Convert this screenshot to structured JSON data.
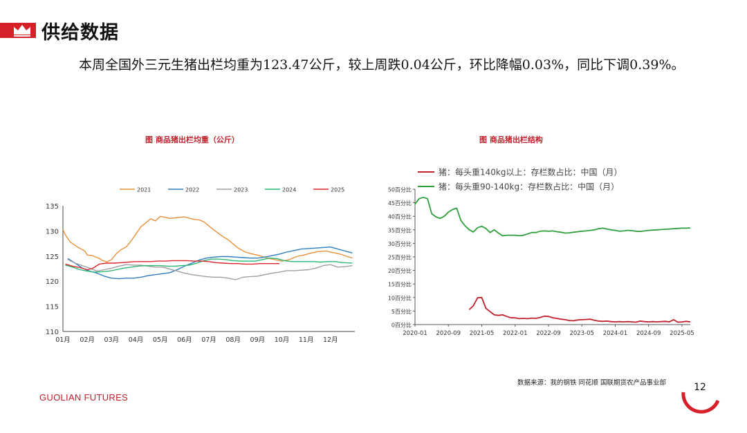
{
  "header": {
    "title": "供给数据"
  },
  "summary": "本周全国外三元生猪出栏均重为123.47公斤，较上周跌0.04公斤，环比降幅0.03%，同比下调0.39%。",
  "colors": {
    "accent": "#d6202a",
    "c2021": "#e8913a",
    "c2022": "#2e7bbf",
    "c2023": "#9e9e9e",
    "c2024": "#2bb673",
    "c2025": "#e0262c",
    "heavy": "#c0202a",
    "mid": "#2f9e3c"
  },
  "icons": {
    "logo": "crown-icon"
  },
  "chart_data": [
    {
      "type": "line",
      "title": "图   商品猪出栏均重（公斤）",
      "xlabel": "",
      "ylabel": "",
      "categories": [
        "01月",
        "02月",
        "03月",
        "04月",
        "05月",
        "06月",
        "07月",
        "08月",
        "09月",
        "10月",
        "11月",
        "12月"
      ],
      "ylim": [
        110,
        135
      ],
      "yticks": [
        "135",
        "130",
        "125",
        "120",
        "115",
        "110"
      ],
      "legend_position": "top",
      "series": [
        {
          "name": "2021",
          "x": [
            1,
            1.1,
            1.3,
            1.6,
            1.9,
            2.0,
            2.2,
            2.5,
            2.6,
            2.8,
            3.0,
            3.2,
            3.4,
            3.6,
            3.8,
            4.0,
            4.2,
            4.4,
            4.6,
            4.8,
            5.0,
            5.2,
            5.4,
            5.6,
            5.8,
            6.0,
            6.2,
            6.4,
            6.6,
            6.8,
            7.0,
            7.2,
            7.4,
            7.6,
            7.8,
            8.0,
            8.2,
            8.5,
            8.8,
            9.0,
            9.2,
            9.5,
            9.8,
            10.0,
            10.3,
            10.6,
            10.9,
            11.2,
            11.5,
            11.8,
            12.1,
            12.4,
            12.7,
            12.9
          ],
          "values": [
            130.3,
            129.2,
            127.8,
            126.8,
            126.0,
            125.2,
            125.1,
            124.5,
            124.2,
            123.8,
            124.3,
            125.5,
            126.3,
            126.8,
            128.0,
            129.4,
            130.8,
            131.6,
            132.4,
            132.0,
            132.9,
            132.7,
            132.5,
            132.6,
            132.7,
            132.8,
            132.5,
            132.3,
            132.2,
            131.8,
            131.0,
            130.2,
            129.5,
            128.8,
            128.2,
            127.4,
            126.6,
            125.8,
            125.4,
            125.2,
            124.9,
            124.5,
            124.2,
            124.0,
            124.3,
            124.9,
            125.2,
            125.6,
            125.9,
            126.0,
            125.7,
            125.4,
            124.9,
            124.6
          ]
        },
        {
          "name": "2022",
          "x": [
            1.2,
            1.5,
            1.8,
            2.1,
            2.4,
            2.7,
            3.0,
            3.3,
            3.6,
            3.9,
            4.2,
            4.5,
            4.8,
            5.1,
            5.4,
            5.7,
            6.0,
            6.3,
            6.6,
            6.9,
            7.2,
            7.5,
            7.8,
            8.1,
            8.4,
            8.7,
            9.0,
            9.3,
            9.6,
            9.9,
            10.2,
            10.5,
            10.8,
            11.1,
            11.4,
            11.7,
            12.0,
            12.3,
            12.6,
            12.9
          ],
          "values": [
            124.5,
            123.6,
            122.6,
            122.0,
            121.6,
            121.0,
            120.6,
            120.5,
            120.6,
            120.6,
            120.8,
            121.1,
            121.3,
            121.5,
            121.7,
            122.3,
            123.0,
            123.6,
            124.2,
            124.6,
            124.8,
            124.9,
            124.9,
            124.8,
            124.7,
            124.6,
            124.6,
            124.8,
            125.1,
            125.4,
            125.8,
            126.1,
            126.4,
            126.5,
            126.6,
            126.7,
            126.8,
            126.4,
            126.0,
            125.6
          ]
        },
        {
          "name": "2023",
          "x": [
            1.2,
            1.5,
            1.8,
            2.1,
            2.4,
            2.7,
            3.0,
            3.3,
            3.6,
            3.9,
            4.2,
            4.5,
            4.8,
            5.1,
            5.4,
            5.7,
            6.0,
            6.3,
            6.6,
            6.9,
            7.2,
            7.5,
            7.8,
            8.1,
            8.4,
            8.7,
            9.0,
            9.3,
            9.6,
            9.9,
            10.2,
            10.5,
            10.8,
            11.1,
            11.4,
            11.7,
            12.0,
            12.3,
            12.6,
            12.9
          ],
          "values": [
            124.3,
            123.6,
            123.1,
            122.6,
            122.0,
            122.3,
            122.6,
            123.0,
            123.3,
            123.2,
            123.2,
            123.0,
            122.8,
            122.8,
            122.4,
            122.0,
            121.6,
            121.3,
            121.1,
            120.9,
            120.8,
            120.8,
            120.6,
            120.3,
            120.8,
            120.9,
            121.0,
            121.3,
            121.6,
            121.8,
            122.1,
            122.1,
            122.2,
            122.3,
            122.6,
            123.1,
            123.3,
            122.8,
            122.9,
            123.1
          ]
        },
        {
          "name": "2024",
          "x": [
            1.1,
            1.4,
            1.7,
            2.0,
            2.3,
            2.6,
            2.9,
            3.2,
            3.5,
            3.8,
            4.1,
            4.4,
            4.7,
            5.0,
            5.3,
            5.6,
            5.9,
            6.2,
            6.5,
            6.8,
            7.1,
            7.4,
            7.7,
            8.0,
            8.3,
            8.6,
            8.9,
            9.2,
            9.5,
            9.8,
            10.1,
            10.4,
            10.7,
            11.0,
            11.3,
            11.6,
            11.9,
            12.2,
            12.5,
            12.9
          ],
          "values": [
            123.2,
            122.8,
            122.3,
            122.0,
            121.8,
            121.9,
            122.0,
            122.3,
            122.6,
            122.8,
            123.0,
            123.1,
            123.1,
            123.1,
            123.0,
            123.0,
            123.1,
            123.2,
            123.6,
            124.1,
            124.4,
            124.4,
            124.3,
            124.1,
            124.0,
            124.0,
            124.0,
            124.3,
            124.6,
            124.5,
            124.1,
            123.9,
            123.9,
            123.9,
            123.9,
            123.8,
            123.9,
            123.9,
            123.7,
            123.6
          ]
        },
        {
          "name": "2025",
          "x": [
            1.1,
            1.4,
            1.7,
            2.0,
            2.2,
            2.5,
            2.8,
            3.1,
            3.4,
            3.7,
            4.0,
            4.3,
            4.6,
            4.9,
            5.2,
            5.5,
            5.8,
            6.1,
            6.4,
            6.7,
            7.0,
            7.3,
            7.6,
            7.9,
            8.2,
            8.5,
            8.8,
            9.1,
            9.4,
            9.7,
            9.9
          ],
          "values": [
            123.4,
            123.0,
            122.7,
            122.3,
            122.5,
            123.4,
            123.6,
            123.6,
            123.7,
            123.8,
            123.9,
            123.9,
            123.9,
            124.0,
            124.0,
            124.1,
            124.1,
            124.1,
            124.0,
            124.0,
            123.9,
            123.7,
            123.6,
            123.5,
            123.5,
            123.4,
            123.4,
            123.5,
            123.5,
            123.5,
            123.5
          ]
        }
      ]
    },
    {
      "type": "line",
      "title": "图   商品猪出栏结构",
      "xlabel": "",
      "ylabel": "",
      "x_range": [
        "2020-01",
        "2025-07"
      ],
      "xticks": [
        "2020-01",
        "2020-09",
        "2021-05",
        "2022-01",
        "2022-09",
        "2023-05",
        "2024-01",
        "2024-09",
        "2025-05"
      ],
      "ylim": [
        0,
        50
      ],
      "yticks": [
        "50百分比",
        "45百分比",
        "40百分比",
        "35百分比",
        "30百分比",
        "25百分比",
        "20百分比",
        "15百分比",
        "10百分比",
        "5百分比",
        "0百分比"
      ],
      "legend_position": "top",
      "series": [
        {
          "name": "猪：每头重140kg以上：存栏数占比：中国（月）",
          "x": [
            "2021-02",
            "2021-03",
            "2021-04",
            "2021-05",
            "2021-06",
            "2021-07",
            "2021-08",
            "2021-09",
            "2021-10",
            "2021-11",
            "2021-12",
            "2022-01",
            "2022-02",
            "2022-03",
            "2022-04",
            "2022-05",
            "2022-06",
            "2022-07",
            "2022-08",
            "2022-09",
            "2022-10",
            "2022-11",
            "2022-12",
            "2023-01",
            "2023-02",
            "2023-03",
            "2023-04",
            "2023-05",
            "2023-06",
            "2023-07",
            "2023-08",
            "2023-09",
            "2023-10",
            "2023-11",
            "2023-12",
            "2024-01",
            "2024-02",
            "2024-03",
            "2024-04",
            "2024-05",
            "2024-06",
            "2024-07",
            "2024-08",
            "2024-09",
            "2024-10",
            "2024-11",
            "2024-12",
            "2025-01",
            "2025-02",
            "2025-03",
            "2025-04",
            "2025-05",
            "2025-06",
            "2025-07"
          ],
          "values": [
            5.5,
            7.0,
            9.9,
            10.0,
            6.0,
            4.8,
            3.6,
            3.4,
            3.6,
            3.0,
            2.5,
            2.5,
            2.2,
            2.3,
            2.2,
            2.4,
            2.3,
            2.6,
            3.1,
            3.0,
            2.5,
            2.3,
            2.0,
            1.8,
            1.5,
            1.4,
            1.7,
            1.8,
            1.9,
            2.0,
            1.6,
            1.3,
            1.2,
            1.3,
            1.1,
            1.0,
            1.1,
            1.0,
            1.1,
            1.0,
            0.9,
            1.3,
            1.1,
            1.0,
            1.1,
            1.0,
            1.1,
            1.2,
            1.0,
            1.8,
            0.9,
            1.0,
            1.2,
            1.0
          ]
        },
        {
          "name": "猪：每头重90-140kg：存栏数占比：中国（月）",
          "x": [
            "2020-01",
            "2020-02",
            "2020-03",
            "2020-04",
            "2020-05",
            "2020-06",
            "2020-07",
            "2020-08",
            "2020-09",
            "2020-10",
            "2020-11",
            "2020-12",
            "2021-01",
            "2021-02",
            "2021-03",
            "2021-04",
            "2021-05",
            "2021-06",
            "2021-07",
            "2021-08",
            "2021-09",
            "2021-10",
            "2021-11",
            "2021-12",
            "2022-01",
            "2022-02",
            "2022-03",
            "2022-04",
            "2022-05",
            "2022-06",
            "2022-07",
            "2022-08",
            "2022-09",
            "2022-10",
            "2022-11",
            "2022-12",
            "2023-01",
            "2023-02",
            "2023-03",
            "2023-04",
            "2023-05",
            "2023-06",
            "2023-07",
            "2023-08",
            "2023-09",
            "2023-10",
            "2023-11",
            "2023-12",
            "2024-01",
            "2024-02",
            "2024-03",
            "2024-04",
            "2024-05",
            "2024-06",
            "2024-07",
            "2024-08",
            "2024-09",
            "2024-10",
            "2024-11",
            "2024-12",
            "2025-01",
            "2025-02",
            "2025-03",
            "2025-04",
            "2025-05",
            "2025-06",
            "2025-07"
          ],
          "values": [
            44.5,
            46.5,
            47.0,
            46.5,
            41.0,
            39.8,
            39.2,
            40.0,
            41.5,
            42.5,
            43.0,
            38.5,
            36.5,
            35.0,
            34.2,
            35.8,
            36.3,
            35.5,
            34.0,
            35.0,
            33.8,
            32.8,
            33.0,
            33.0,
            33.0,
            32.8,
            33.0,
            33.5,
            34.0,
            34.0,
            34.5,
            34.6,
            34.5,
            34.6,
            34.3,
            34.1,
            33.8,
            33.9,
            34.1,
            34.3,
            34.5,
            34.6,
            34.8,
            35.0,
            35.4,
            35.6,
            35.3,
            35.0,
            34.8,
            34.5,
            34.6,
            34.8,
            34.7,
            34.5,
            34.4,
            34.6,
            34.8,
            34.9,
            35.0,
            35.1,
            35.2,
            35.3,
            35.4,
            35.5,
            35.6,
            35.6,
            35.7
          ]
        }
      ]
    }
  ],
  "footer": {
    "brand": "GUOLIAN FUTURES",
    "source": "数据来源：我的钢铁  同花顺  国联期货农产品事业部",
    "page_number": "12"
  }
}
